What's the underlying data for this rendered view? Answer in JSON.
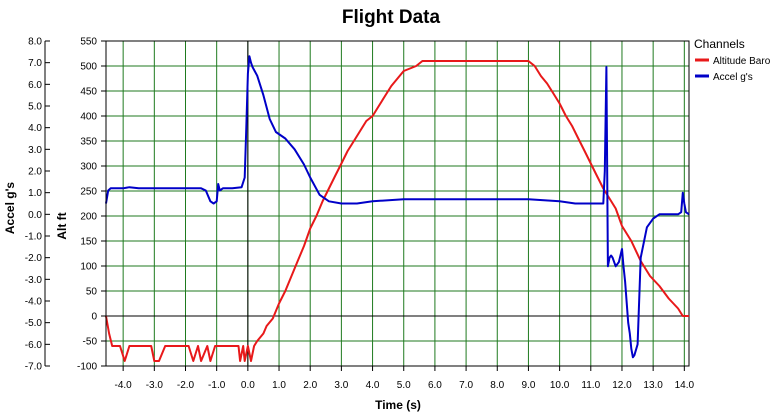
{
  "chart_data": {
    "type": "line",
    "title": "Flight Data",
    "xlabel": "Time (s)",
    "ylabel_left_outer": "Accel g's",
    "ylabel_left_inner": "Alt ft",
    "xlim": [
      -4.55,
      14.15
    ],
    "ylim_alt": [
      -100,
      550
    ],
    "ylim_accel": [
      -7.0,
      8.0
    ],
    "grid": true,
    "legend_position": "top-right",
    "legend_title": "Channels",
    "x_ticks": [
      -4.0,
      -3.0,
      -2.0,
      -1.0,
      0.0,
      1.0,
      2.0,
      3.0,
      4.0,
      5.0,
      6.0,
      7.0,
      8.0,
      9.0,
      10.0,
      11.0,
      12.0,
      13.0,
      14.0
    ],
    "x_tick_labels": [
      "-4.0",
      "-3.0",
      "-2.0",
      "-1.0",
      "0.0",
      "1.0",
      "2.0",
      "3.0",
      "4.0",
      "5.0",
      "6.0",
      "7.0",
      "8.0",
      "9.0",
      "10.0",
      "11.0",
      "12.0",
      "13.0",
      "14.0"
    ],
    "alt_ticks": [
      -100,
      -50,
      0,
      50,
      100,
      150,
      200,
      250,
      300,
      350,
      400,
      450,
      500,
      550
    ],
    "alt_tick_labels": [
      "-100",
      "-50",
      "0",
      "50",
      "100",
      "150",
      "200",
      "250",
      "300",
      "350",
      "400",
      "450",
      "500",
      "550"
    ],
    "accel_ticks": [
      -7.0,
      -6.0,
      -5.0,
      -4.0,
      -3.0,
      -2.0,
      -1.0,
      0.0,
      1.0,
      2.0,
      3.0,
      4.0,
      5.0,
      6.0,
      7.0,
      8.0
    ],
    "accel_tick_labels": [
      "-7.0",
      "-6.0",
      "-5.0",
      "-4.0",
      "-3.0",
      "-2.0",
      "-1.0",
      "0.0",
      "1.0",
      "2.0",
      "3.0",
      "4.0",
      "5.0",
      "6.0",
      "7.0",
      "8.0"
    ],
    "series": [
      {
        "name": "Altitude Baro",
        "axis": "alt",
        "color": "#e8191a",
        "x": [
          -4.55,
          -4.45,
          -4.35,
          -4.1,
          -3.95,
          -3.8,
          -3.1,
          -3.0,
          -2.85,
          -2.65,
          -1.9,
          -1.75,
          -1.6,
          -1.5,
          -1.3,
          -1.2,
          -1.05,
          -0.6,
          -0.3,
          -0.25,
          -0.15,
          -0.1,
          0.0,
          0.1,
          0.2,
          0.3,
          0.5,
          0.6,
          0.8,
          1.0,
          1.2,
          1.4,
          1.6,
          1.8,
          2.0,
          2.2,
          2.4,
          2.6,
          2.8,
          3.0,
          3.2,
          3.4,
          3.6,
          3.8,
          4.0,
          4.2,
          4.4,
          4.6,
          4.8,
          5.0,
          5.4,
          5.6,
          6.0,
          7.0,
          8.0,
          8.6,
          9.0,
          9.2,
          9.4,
          9.6,
          9.8,
          10.0,
          10.2,
          10.4,
          10.6,
          10.8,
          11.0,
          11.2,
          11.4,
          11.6,
          11.8,
          12.0,
          12.3,
          12.6,
          12.9,
          13.2,
          13.5,
          13.8,
          13.95,
          14.15
        ],
        "y": [
          0,
          -35,
          -60,
          -60,
          -90,
          -60,
          -60,
          -90,
          -90,
          -60,
          -60,
          -90,
          -60,
          -90,
          -60,
          -90,
          -60,
          -60,
          -60,
          -90,
          -60,
          -90,
          -60,
          -90,
          -60,
          -50,
          -35,
          -20,
          -5,
          25,
          50,
          80,
          110,
          140,
          175,
          200,
          230,
          255,
          280,
          305,
          330,
          350,
          370,
          390,
          400,
          420,
          440,
          460,
          475,
          490,
          500,
          510,
          510,
          510,
          510,
          510,
          510,
          500,
          480,
          465,
          445,
          425,
          400,
          380,
          355,
          330,
          305,
          280,
          255,
          235,
          215,
          180,
          150,
          110,
          80,
          60,
          35,
          15,
          0,
          0
        ]
      },
      {
        "name": "Accel g's",
        "axis": "accel",
        "color": "#0000c8",
        "x": [
          -4.55,
          -4.48,
          -4.4,
          -4.2,
          -4.0,
          -3.8,
          -3.5,
          -3.0,
          -2.5,
          -2.0,
          -1.5,
          -1.35,
          -1.2,
          -1.1,
          -1.0,
          -0.95,
          -0.9,
          -0.8,
          -0.5,
          -0.2,
          -0.1,
          -0.05,
          0.0,
          0.05,
          0.1,
          0.15,
          0.3,
          0.5,
          0.7,
          0.9,
          1.2,
          1.5,
          1.8,
          2.0,
          2.3,
          2.6,
          3.0,
          3.5,
          4.0,
          5.0,
          6.0,
          7.0,
          8.0,
          9.0,
          9.5,
          10.0,
          10.5,
          11.0,
          11.4,
          11.45,
          11.5,
          11.55,
          11.6,
          11.65,
          11.7,
          11.8,
          11.9,
          12.0,
          12.05,
          12.1,
          12.2,
          12.25,
          12.3,
          12.35,
          12.4,
          12.5,
          12.6,
          12.8,
          13.0,
          13.2,
          13.5,
          13.8,
          13.9,
          13.95,
          14.0,
          14.05,
          14.15
        ],
        "y": [
          0.5,
          1.1,
          1.2,
          1.2,
          1.2,
          1.25,
          1.2,
          1.2,
          1.2,
          1.2,
          1.2,
          1.1,
          0.6,
          0.5,
          0.6,
          1.4,
          1.1,
          1.2,
          1.2,
          1.25,
          1.7,
          4.0,
          6.5,
          7.3,
          7.0,
          6.8,
          6.4,
          5.5,
          4.4,
          3.8,
          3.5,
          3.0,
          2.3,
          1.7,
          0.9,
          0.6,
          0.5,
          0.5,
          0.6,
          0.7,
          0.7,
          0.7,
          0.7,
          0.7,
          0.65,
          0.6,
          0.5,
          0.5,
          0.5,
          2.0,
          6.8,
          -2.4,
          -2.0,
          -1.9,
          -2.0,
          -2.4,
          -2.2,
          -1.6,
          -2.4,
          -3.1,
          -5.0,
          -5.5,
          -6.2,
          -6.6,
          -6.5,
          -6.0,
          -2.0,
          -0.6,
          -0.2,
          0.0,
          0.0,
          0.0,
          0.1,
          1.0,
          0.5,
          0.1,
          0.0
        ]
      }
    ]
  }
}
